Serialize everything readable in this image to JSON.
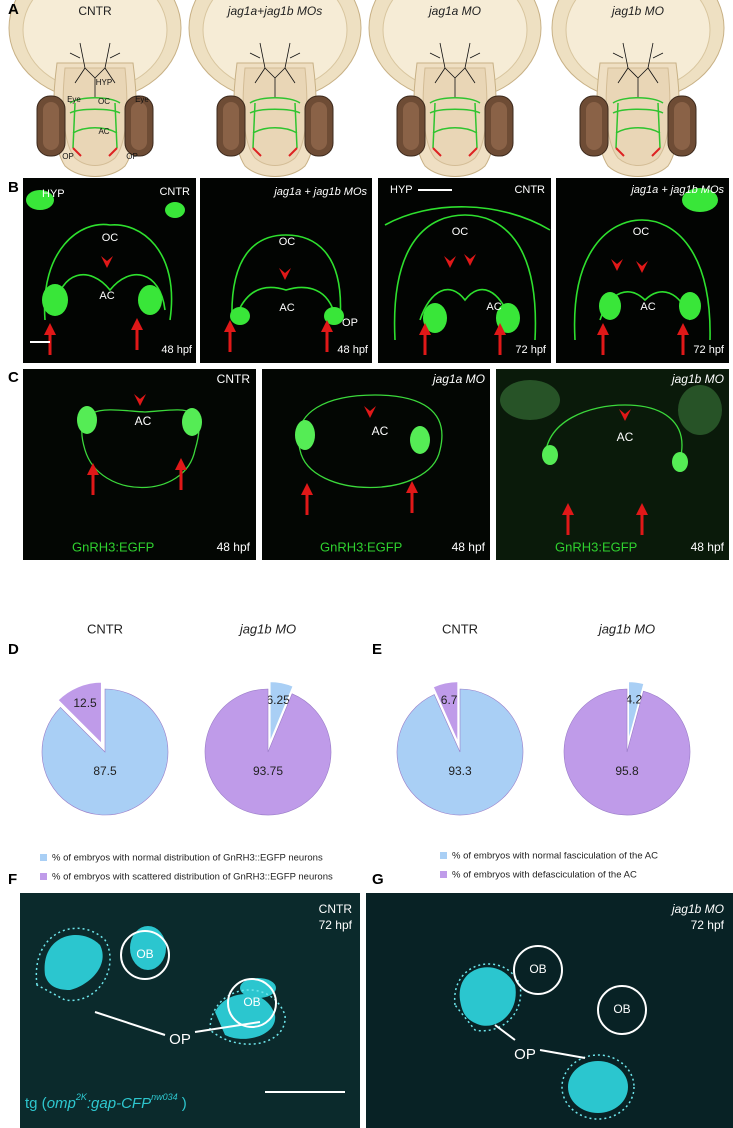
{
  "labels": [
    "A",
    "B",
    "C",
    "D",
    "E",
    "F",
    "G"
  ],
  "panel_a": {
    "titles": [
      "CNTR",
      "jag1a+jag1b MOs",
      "jag1a MO",
      "jag1b MO"
    ],
    "annotations": [
      "HYP",
      "OC",
      "Eye",
      "Eye",
      "AC",
      "OP",
      "OP"
    ]
  },
  "panel_b": [
    [
      "HYP",
      "CNTR",
      "OC",
      "AC",
      "48 hpf"
    ],
    [
      "jag1a + jag1b MOs",
      "OC",
      "AC",
      "OP",
      "48 hpf"
    ],
    [
      "HYP",
      "CNTR",
      "OC",
      "AC",
      "72 hpf"
    ],
    [
      "jag1a + jag1b MOs",
      "OC",
      "AC",
      "72 hpf"
    ]
  ],
  "panel_c": [
    [
      "CNTR",
      "AC",
      "GnRH3:EGFP",
      "48 hpf"
    ],
    [
      "jag1a MO",
      "AC",
      "GnRH3:EGFP",
      "48 hpf"
    ],
    [
      "jag1b MO",
      "AC",
      "GnRH3:EGFP",
      "48 hpf"
    ]
  ],
  "chart_data": [
    {
      "type": "pie",
      "categories": [
        "% of embryos with normal distribution of GnRH3::EGFP neurons",
        "% of embryos with scattered distribution of GnRH3::EGFP neurons"
      ],
      "colors": [
        "#a9cff5",
        "#bf9be9"
      ],
      "series": [
        {
          "name": "CNTR",
          "values": [
            87.5,
            12.5
          ]
        },
        {
          "name": "jag1b MO",
          "values": [
            6.25,
            93.75
          ]
        }
      ]
    },
    {
      "type": "pie",
      "categories": [
        "% of embryos with normal fasciculation of the AC",
        "% of embryos with defasciculation of the AC"
      ],
      "colors": [
        "#a9cff5",
        "#bf9be9"
      ],
      "series": [
        {
          "name": "CNTR",
          "values": [
            93.3,
            6.7
          ]
        },
        {
          "name": "jag1b MO",
          "values": [
            4.2,
            95.8
          ]
        }
      ]
    }
  ],
  "panel_f": {
    "texts": [
      "CNTR",
      "72 hpf",
      "OB",
      "OB",
      "OP"
    ],
    "transgene": [
      "tg (",
      "omp",
      "2K",
      ":gap-CFP",
      "nw034",
      " )"
    ]
  },
  "panel_g": [
    "jag1b MO",
    "72 hpf",
    "OB",
    "OB",
    "OP"
  ]
}
